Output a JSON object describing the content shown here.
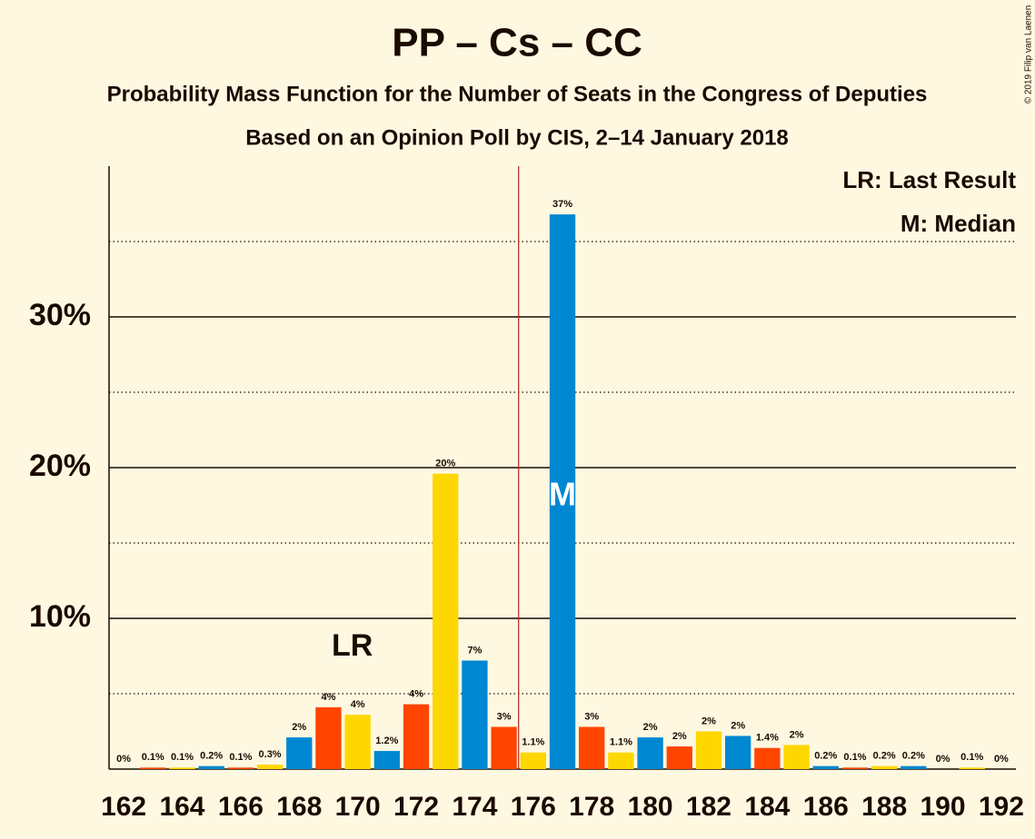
{
  "chart_data": {
    "type": "bar",
    "title": "PP – Cs – CC",
    "subtitle": "Probability Mass Function for the Number of Seats in the Congress of Deputies",
    "subtitle2": "Based on an Opinion Poll by CIS, 2–14 January 2018",
    "copyright": "© 2019 Filip van Laenen",
    "x": [
      162,
      163,
      164,
      165,
      166,
      167,
      168,
      169,
      170,
      171,
      172,
      173,
      174,
      175,
      176,
      177,
      178,
      179,
      180,
      181,
      182,
      183,
      184,
      185,
      186,
      187,
      188,
      189,
      190,
      191,
      192
    ],
    "values": [
      0,
      0.1,
      0.1,
      0.2,
      0.1,
      0.3,
      2.1,
      4.1,
      3.6,
      1.2,
      4.3,
      19.6,
      7.2,
      2.8,
      1.1,
      36.8,
      2.8,
      1.1,
      2.1,
      1.5,
      2.5,
      2.2,
      1.4,
      1.6,
      0.2,
      0.1,
      0.2,
      0.2,
      0,
      0.1,
      0
    ],
    "value_labels": [
      "0%",
      "0.1%",
      "0.1%",
      "0.2%",
      "0.1%",
      "0.3%",
      "2%",
      "4%",
      "4%",
      "1.2%",
      "4%",
      "20%",
      "7%",
      "3%",
      "1.1%",
      "37%",
      "3%",
      "1.1%",
      "2%",
      "2%",
      "2%",
      "2%",
      "1.4%",
      "2%",
      "0.2%",
      "0.1%",
      "0.2%",
      "0.2%",
      "0%",
      "0.1%",
      "0%"
    ],
    "palette": [
      "#0087d2",
      "#ff4500",
      "#ffd700"
    ],
    "xlim": [
      161.5,
      192.5
    ],
    "xticks": [
      162,
      164,
      166,
      168,
      170,
      172,
      174,
      176,
      178,
      180,
      182,
      184,
      186,
      188,
      190,
      192
    ],
    "ylim": [
      0,
      40
    ],
    "yticks": [
      {
        "value": 10,
        "label": "10%"
      },
      {
        "value": 20,
        "label": "20%"
      },
      {
        "value": 30,
        "label": "30%"
      }
    ],
    "minor_yticks": [
      5,
      15,
      25,
      35
    ],
    "grid": true,
    "majority_line": 175.5,
    "last_result": {
      "x": 170,
      "label": "LR"
    },
    "median": {
      "x": 177,
      "label": "M"
    },
    "legend": [
      "LR: Last Result",
      "M: Median"
    ]
  }
}
